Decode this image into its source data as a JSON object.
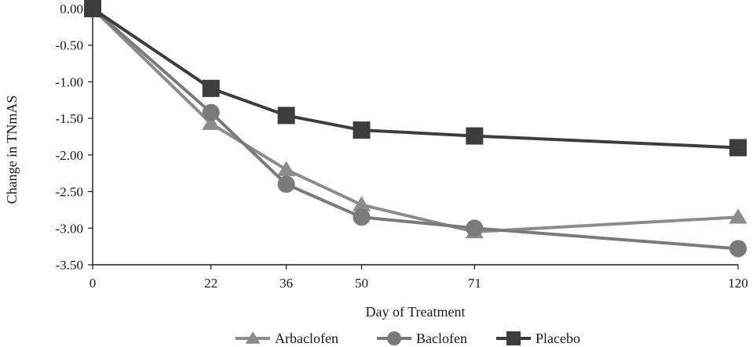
{
  "chart_data": {
    "type": "line",
    "xlabel": "Day of Treatment",
    "ylabel": "Change in TNmAS",
    "x": [
      0,
      22,
      36,
      50,
      71,
      120
    ],
    "x_tick_labels": [
      "0",
      "22",
      "36",
      "50",
      "71",
      "120"
    ],
    "xlim": [
      0,
      120
    ],
    "ylim": [
      -3.5,
      0
    ],
    "y_ticks": [
      0,
      -0.5,
      -1,
      -1.5,
      -2,
      -2.5,
      -3,
      -3.5
    ],
    "y_tick_labels": [
      "0.00",
      "-0.50",
      "-1.00",
      "-1.50",
      "-2.00",
      "-2.50",
      "-3.00",
      "-3.50"
    ],
    "grid": false,
    "legend_position": "bottom",
    "series": [
      {
        "name": "Arbaclofen",
        "marker": "triangle",
        "color": "#8c8c8c",
        "values": [
          0,
          -1.57,
          -2.2,
          -2.68,
          -3.05,
          -2.85
        ]
      },
      {
        "name": "Baclofen",
        "marker": "circle",
        "color": "#7a7a7a",
        "values": [
          0,
          -1.42,
          -2.4,
          -2.85,
          -3.0,
          -3.28
        ]
      },
      {
        "name": "Placebo",
        "marker": "square",
        "color": "#3d3d3d",
        "values": [
          0,
          -1.09,
          -1.46,
          -1.66,
          -1.74,
          -1.9
        ]
      }
    ]
  }
}
